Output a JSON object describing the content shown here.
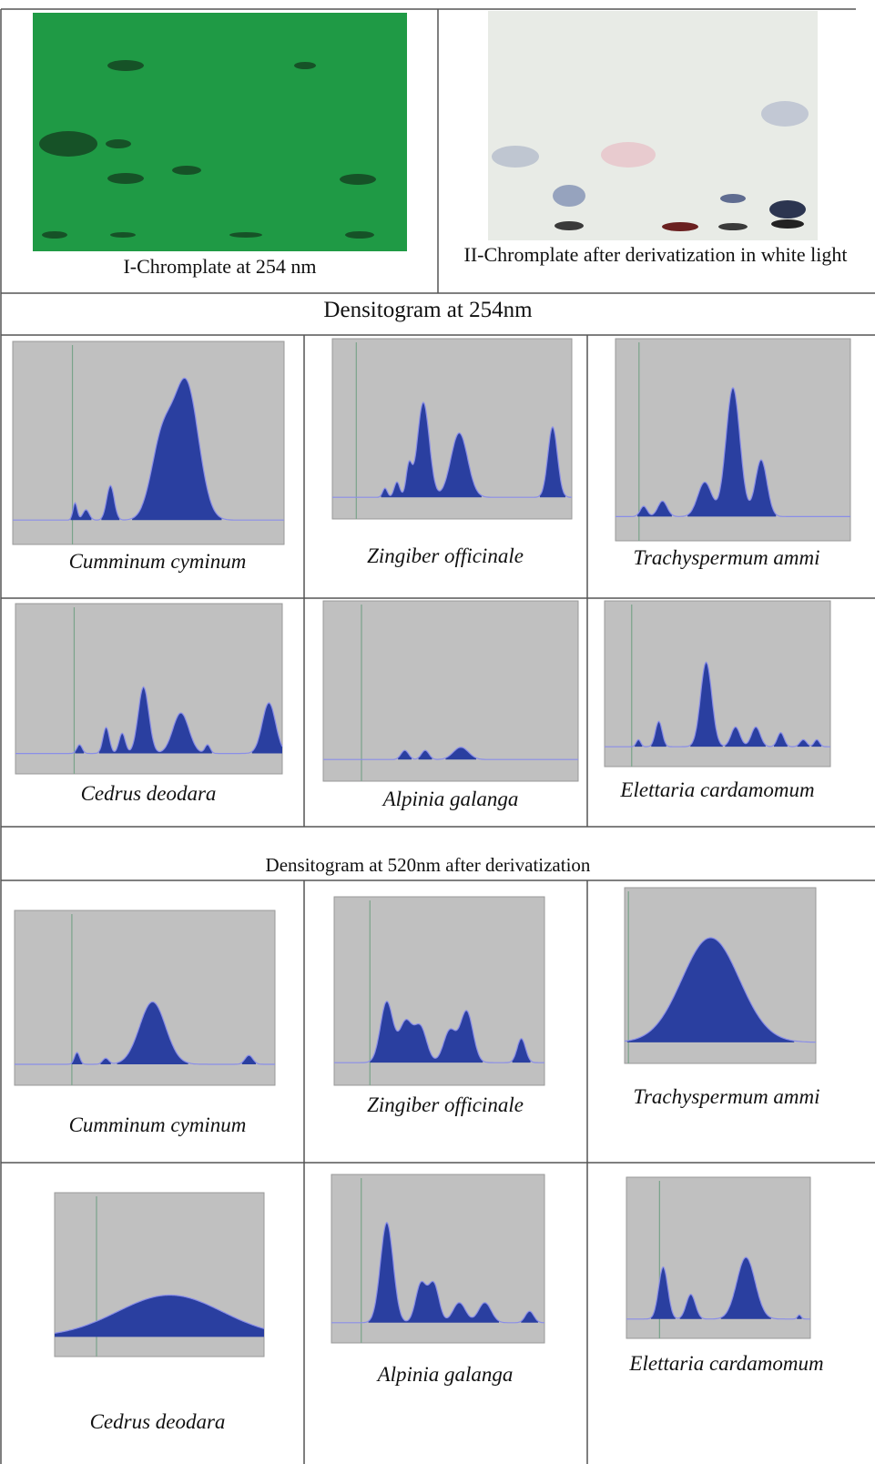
{
  "top": [
    {
      "caption": "I-Chromplate at 254 nm"
    },
    {
      "caption": "II-Chromplate after derivatization in white light"
    }
  ],
  "sections": [
    {
      "title": "Densitogram at 254nm",
      "panels": [
        {
          "caption": "Cumminum cyminum"
        },
        {
          "caption": "Zingiber officinale"
        },
        {
          "caption": "Trachyspermum ammi"
        },
        {
          "caption": "Cedrus deodara"
        },
        {
          "caption": "Alpinia galanga"
        },
        {
          "caption": "Elettaria cardamomum"
        }
      ]
    },
    {
      "title": "Densitogram at 520nm after derivatization",
      "panels": [
        {
          "caption": "Cumminum cyminum"
        },
        {
          "caption": "Zingiber officinale"
        },
        {
          "caption": "Trachyspermum ammi"
        },
        {
          "caption": "Cedrus deodara"
        },
        {
          "caption": "Alpinia galanga"
        },
        {
          "caption": "Elettaria cardamomum"
        }
      ]
    }
  ]
}
